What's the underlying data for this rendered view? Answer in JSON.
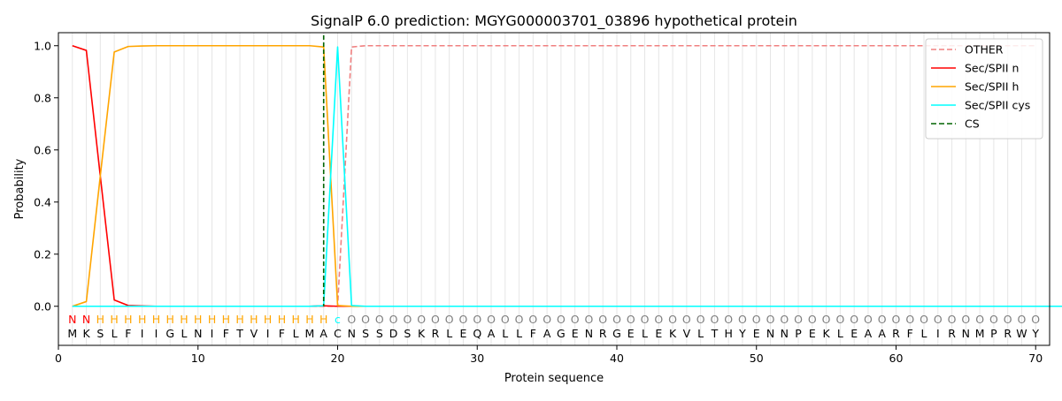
{
  "chart_data": {
    "type": "line",
    "title": "SignalP 6.0 prediction: MGYG000003701_03896 hypothetical protein",
    "xlabel": "Protein sequence",
    "ylabel": "Probability",
    "xlim": [
      0,
      71
    ],
    "ylim": [
      -0.15,
      1.05
    ],
    "xticks": [
      0,
      10,
      20,
      30,
      40,
      50,
      60,
      70
    ],
    "yticks": [
      0.0,
      0.2,
      0.4,
      0.6,
      0.8,
      1.0
    ],
    "ytick_labels": [
      "0.0",
      "0.2",
      "0.4",
      "0.6",
      "0.8",
      "1.0"
    ],
    "grid": "vertical lines at each residue",
    "legend_position": "top-right",
    "sequence": [
      "M",
      "K",
      "S",
      "L",
      "F",
      "I",
      "I",
      "G",
      "L",
      "N",
      "I",
      "F",
      "T",
      "V",
      "I",
      "F",
      "L",
      "M",
      "A",
      "C",
      "N",
      "S",
      "S",
      "D",
      "S",
      "K",
      "R",
      "L",
      "E",
      "Q",
      "A",
      "L",
      "L",
      "F",
      "A",
      "G",
      "E",
      "N",
      "R",
      "G",
      "E",
      "L",
      "E",
      "K",
      "V",
      "L",
      "T",
      "H",
      "Y",
      "E",
      "N",
      "N",
      "P",
      "E",
      "K",
      "L",
      "E",
      "A",
      "A",
      "R",
      "F",
      "L",
      "I",
      "R",
      "N",
      "M",
      "P",
      "R",
      "W",
      "Y"
    ],
    "annotation": [
      "N",
      "N",
      "H",
      "H",
      "H",
      "H",
      "H",
      "H",
      "H",
      "H",
      "H",
      "H",
      "H",
      "H",
      "H",
      "H",
      "H",
      "H",
      "H",
      "C",
      "O",
      "O",
      "O",
      "O",
      "O",
      "O",
      "O",
      "O",
      "O",
      "O",
      "O",
      "O",
      "O",
      "O",
      "O",
      "O",
      "O",
      "O",
      "O",
      "O",
      "O",
      "O",
      "O",
      "O",
      "O",
      "O",
      "O",
      "O",
      "O",
      "O",
      "O",
      "O",
      "O",
      "O",
      "O",
      "O",
      "O",
      "O",
      "O",
      "O",
      "O",
      "O",
      "O",
      "O",
      "O",
      "O",
      "O",
      "O",
      "O",
      "O"
    ],
    "annotation_display": [
      "N",
      "N",
      "H",
      "H",
      "H",
      "H",
      "H",
      "H",
      "H",
      "H",
      "H",
      "H",
      "H",
      "H",
      "H",
      "H",
      "H",
      "H",
      "H",
      "c",
      "O",
      "O",
      "O",
      "O",
      "O",
      "O",
      "O",
      "O",
      "O",
      "O",
      "O",
      "O",
      "O",
      "O",
      "O",
      "O",
      "O",
      "O",
      "O",
      "O",
      "O",
      "O",
      "O",
      "O",
      "O",
      "O",
      "O",
      "O",
      "O",
      "O",
      "O",
      "O",
      "O",
      "O",
      "O",
      "O",
      "O",
      "O",
      "O",
      "O",
      "O",
      "O",
      "O",
      "O",
      "O",
      "O",
      "O",
      "O",
      "O",
      "O"
    ],
    "annotation_colors": {
      "N": "#ff0000",
      "H": "#ffa500",
      "C": "#00ffff",
      "O": "#808080"
    },
    "cleavage_site": 19,
    "series": [
      {
        "name": "OTHER",
        "color": "#f08080",
        "dash": "dashed",
        "values": [
          0,
          0,
          0,
          0,
          0,
          0,
          0,
          0,
          0,
          0,
          0,
          0,
          0,
          0,
          0,
          0,
          0,
          0,
          0,
          0,
          0.995,
          1,
          1,
          1,
          1,
          1,
          1,
          1,
          1,
          1,
          1,
          1,
          1,
          1,
          1,
          1,
          1,
          1,
          1,
          1,
          1,
          1,
          1,
          1,
          1,
          1,
          1,
          1,
          1,
          1,
          1,
          1,
          1,
          1,
          1,
          1,
          1,
          1,
          1,
          1,
          1,
          1,
          1,
          1,
          1,
          1,
          1,
          1,
          1,
          1
        ]
      },
      {
        "name": "Sec/SPII n",
        "color": "#ff0000",
        "dash": "solid",
        "values": [
          1.0,
          0.982,
          0.5,
          0.024,
          0.003,
          0.001,
          0,
          0,
          0,
          0,
          0,
          0,
          0,
          0,
          0,
          0,
          0,
          0,
          0.002,
          0,
          0,
          0,
          0,
          0,
          0,
          0,
          0,
          0,
          0,
          0,
          0,
          0,
          0,
          0,
          0,
          0,
          0,
          0,
          0,
          0,
          0,
          0,
          0,
          0,
          0,
          0,
          0,
          0,
          0,
          0,
          0,
          0,
          0,
          0,
          0,
          0,
          0,
          0,
          0,
          0,
          0,
          0,
          0,
          0,
          0,
          0,
          0,
          0,
          0,
          0
        ]
      },
      {
        "name": "Sec/SPII h",
        "color": "#ffa500",
        "dash": "solid",
        "values": [
          0,
          0.018,
          0.5,
          0.976,
          0.997,
          0.999,
          1,
          1,
          1,
          1,
          1,
          1,
          1,
          1,
          1,
          1,
          1,
          1,
          0.995,
          0.003,
          0,
          0,
          0,
          0,
          0,
          0,
          0,
          0,
          0,
          0,
          0,
          0,
          0,
          0,
          0,
          0,
          0,
          0,
          0,
          0,
          0,
          0,
          0,
          0,
          0,
          0,
          0,
          0,
          0,
          0,
          0,
          0,
          0,
          0,
          0,
          0,
          0,
          0,
          0,
          0,
          0,
          0,
          0,
          0,
          0,
          0,
          0,
          0,
          0,
          0
        ]
      },
      {
        "name": "Sec/SPII cys",
        "color": "#00ffff",
        "dash": "solid",
        "values": [
          0,
          0,
          0,
          0,
          0,
          0,
          0,
          0,
          0,
          0,
          0,
          0,
          0,
          0,
          0,
          0,
          0,
          0,
          0.002,
          0.995,
          0.003,
          0,
          0,
          0,
          0,
          0,
          0,
          0,
          0,
          0,
          0,
          0,
          0,
          0,
          0,
          0,
          0,
          0,
          0,
          0,
          0,
          0,
          0,
          0,
          0,
          0,
          0,
          0,
          0,
          0,
          0,
          0,
          0,
          0,
          0,
          0,
          0,
          0,
          0,
          0,
          0,
          0,
          0,
          0,
          0,
          0,
          0,
          0,
          0,
          0,
          0,
          0
        ]
      }
    ],
    "legend": [
      {
        "label": "OTHER",
        "color": "#f08080",
        "dash": "dashed"
      },
      {
        "label": "Sec/SPII n",
        "color": "#ff0000",
        "dash": "solid"
      },
      {
        "label": "Sec/SPII h",
        "color": "#ffa500",
        "dash": "solid"
      },
      {
        "label": "Sec/SPII cys",
        "color": "#00ffff",
        "dash": "solid"
      },
      {
        "label": "CS",
        "color": "#006400",
        "dash": "dashed"
      }
    ]
  }
}
